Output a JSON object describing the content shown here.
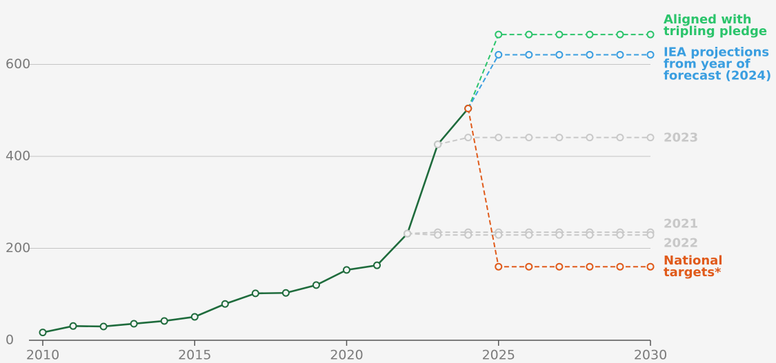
{
  "chart_data": {
    "type": "line",
    "x": [
      2010,
      2011,
      2012,
      2013,
      2014,
      2015,
      2016,
      2017,
      2018,
      2019,
      2020,
      2021,
      2022,
      2023,
      2024,
      2025,
      2026,
      2027,
      2028,
      2029,
      2030
    ],
    "xlim": [
      2010,
      2030
    ],
    "xticks": [
      2010,
      2015,
      2020,
      2025,
      2030
    ],
    "ylim": [
      0,
      740
    ],
    "yticks": [
      0,
      200,
      400,
      600
    ],
    "grid": true,
    "series": [
      {
        "color": "#1e6b3c",
        "dashed": false,
        "values": [
          17,
          31,
          30,
          36,
          42,
          51,
          79,
          102,
          103,
          120,
          153,
          163,
          232,
          426,
          504,
          null,
          null,
          null,
          null,
          null,
          null
        ]
      },
      {
        "name": "2021",
        "color": "#c8c8c8",
        "dashed": true,
        "values": [
          null,
          null,
          null,
          null,
          null,
          null,
          null,
          null,
          null,
          null,
          null,
          null,
          232,
          235,
          235,
          235,
          235,
          235,
          235,
          235,
          235
        ]
      },
      {
        "name": "2022",
        "color": "#c8c8c8",
        "dashed": true,
        "values": [
          null,
          null,
          null,
          null,
          null,
          null,
          null,
          null,
          null,
          null,
          null,
          null,
          232,
          229,
          229,
          229,
          229,
          229,
          229,
          229,
          229
        ]
      },
      {
        "name": "2023",
        "color": "#c8c8c8",
        "dashed": true,
        "values": [
          null,
          null,
          null,
          null,
          null,
          null,
          null,
          null,
          null,
          null,
          null,
          null,
          null,
          426,
          441,
          441,
          441,
          441,
          441,
          441,
          441
        ]
      },
      {
        "name": "Aligned with\ntripling pledge",
        "color": "#2bc46b",
        "dashed": true,
        "values": [
          null,
          null,
          null,
          null,
          null,
          null,
          null,
          null,
          null,
          null,
          null,
          null,
          null,
          null,
          504,
          665,
          665,
          665,
          665,
          665,
          665
        ]
      },
      {
        "name": "IEA projections\nfrom year of\nforecast (2024)",
        "color": "#3a9ee0",
        "dashed": true,
        "values": [
          null,
          null,
          null,
          null,
          null,
          null,
          null,
          null,
          null,
          null,
          null,
          null,
          null,
          null,
          504,
          621,
          621,
          621,
          621,
          621,
          621
        ]
      },
      {
        "name": "National\ntargets*",
        "color": "#e05a1a",
        "dashed": true,
        "values": [
          null,
          null,
          null,
          null,
          null,
          null,
          null,
          null,
          null,
          null,
          null,
          null,
          null,
          null,
          504,
          160,
          160,
          160,
          160,
          160,
          160
        ]
      }
    ]
  }
}
